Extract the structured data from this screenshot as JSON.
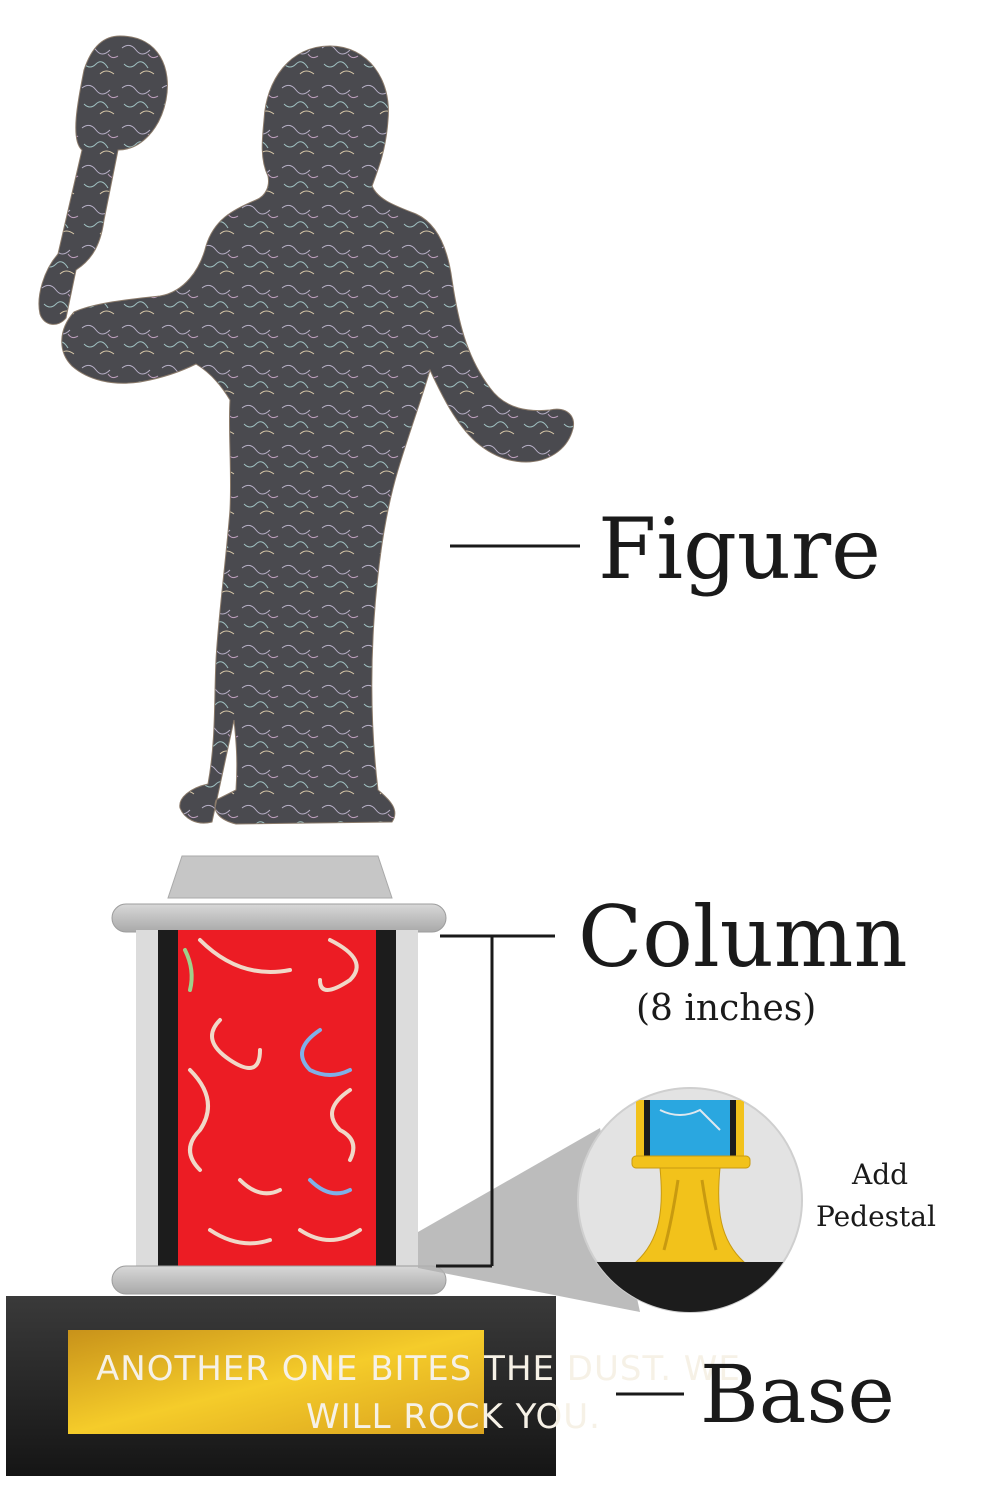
{
  "labels": {
    "figure": "Figure",
    "column": "Column",
    "column_size": "(8 inches)",
    "base": "Base",
    "pedestal_line1": "Add",
    "pedestal_line2": "Pedestal"
  },
  "plate": {
    "line1": "ANOTHER ONE BITES THE DUST. WE",
    "line2": "WILL ROCK YOU."
  },
  "colors": {
    "figure": "#4a4a4f",
    "column_fill": "#ec1c24",
    "column_frame": "#1c1c1c",
    "cap": "#c9c9c9",
    "base": "#2a2a2a",
    "plate": "#e9b321",
    "pedestal_gold": "#f2c21b",
    "pedestal_blue": "#2aa7e0"
  }
}
